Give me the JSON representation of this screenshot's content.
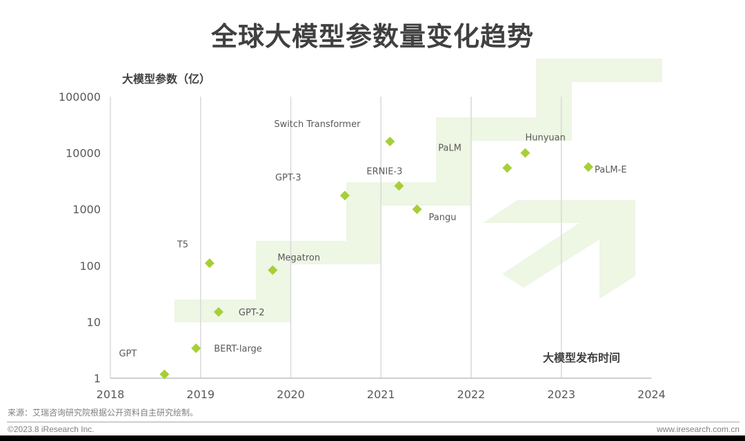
{
  "title": "全球大模型参数量变化趋势",
  "y_axis_title": "大模型参数（亿）",
  "x_axis_title": "大模型发布时间",
  "source": "来源：艾瑞咨询研究院根据公开资料自主研究绘制。",
  "copyright": "©2023.8 iResearch Inc.",
  "website": "www.iresearch.com.cn",
  "colors": {
    "marker": "#a6cf38",
    "band": "#eef6e4",
    "grid": "#d9d9d9",
    "text": "#595959",
    "title": "#404040"
  },
  "chart_data": {
    "type": "scatter",
    "title": "全球大模型参数量变化趋势",
    "xlabel": "大模型发布时间",
    "ylabel": "大模型参数（亿）",
    "xlim": [
      2018,
      2024
    ],
    "ylim": [
      1,
      100000
    ],
    "y_scale": "log",
    "x_ticks": [
      "2018",
      "2019",
      "2020",
      "2021",
      "2022",
      "2023",
      "2024"
    ],
    "y_ticks": [
      "1",
      "10",
      "100",
      "1000",
      "10000",
      "100000"
    ],
    "grid": "vertical",
    "legend": "none",
    "points": [
      {
        "name": "GPT",
        "x": 2018.6,
        "y": 1.17
      },
      {
        "name": "BERT-large",
        "x": 2018.95,
        "y": 3.4
      },
      {
        "name": "T5",
        "x": 2019.1,
        "y": 110
      },
      {
        "name": "GPT-2",
        "x": 2019.2,
        "y": 15
      },
      {
        "name": "Megatron",
        "x": 2019.8,
        "y": 83
      },
      {
        "name": "GPT-3",
        "x": 2020.6,
        "y": 1750
      },
      {
        "name": "Switch Transformer",
        "x": 2021.1,
        "y": 16000
      },
      {
        "name": "ERNIE-3",
        "x": 2021.2,
        "y": 2600
      },
      {
        "name": "Pangu",
        "x": 2021.4,
        "y": 1000
      },
      {
        "name": "PaLM",
        "x": 2022.4,
        "y": 5400
      },
      {
        "name": "Hunyuan",
        "x": 2022.6,
        "y": 10000
      },
      {
        "name": "PaLM-E",
        "x": 2023.3,
        "y": 5620
      }
    ],
    "annotations": [
      "staircase trend band",
      "upward arrow"
    ]
  }
}
